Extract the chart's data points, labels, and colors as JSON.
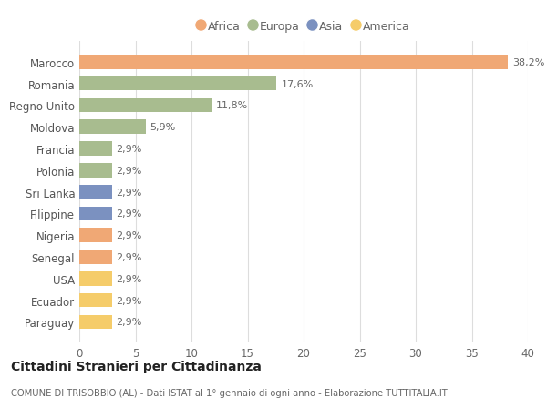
{
  "categories": [
    "Marocco",
    "Romania",
    "Regno Unito",
    "Moldova",
    "Francia",
    "Polonia",
    "Sri Lanka",
    "Filippine",
    "Nigeria",
    "Senegal",
    "USA",
    "Ecuador",
    "Paraguay"
  ],
  "values": [
    38.2,
    17.6,
    11.8,
    5.9,
    2.9,
    2.9,
    2.9,
    2.9,
    2.9,
    2.9,
    2.9,
    2.9,
    2.9
  ],
  "labels": [
    "38,2%",
    "17,6%",
    "11,8%",
    "5,9%",
    "2,9%",
    "2,9%",
    "2,9%",
    "2,9%",
    "2,9%",
    "2,9%",
    "2,9%",
    "2,9%",
    "2,9%"
  ],
  "colors": [
    "#F0A875",
    "#A8BC8F",
    "#A8BC8F",
    "#A8BC8F",
    "#A8BC8F",
    "#A8BC8F",
    "#7B91C0",
    "#7B91C0",
    "#F0A875",
    "#F0A875",
    "#F5CC6A",
    "#F5CC6A",
    "#F5CC6A"
  ],
  "legend": [
    {
      "label": "Africa",
      "color": "#F0A875"
    },
    {
      "label": "Europa",
      "color": "#A8BC8F"
    },
    {
      "label": "Asia",
      "color": "#7B91C0"
    },
    {
      "label": "America",
      "color": "#F5CC6A"
    }
  ],
  "title": "Cittadini Stranieri per Cittadinanza",
  "subtitle": "COMUNE DI TRISOBBIO (AL) - Dati ISTAT al 1° gennaio di ogni anno - Elaborazione TUTTITALIA.IT",
  "xlim": [
    0,
    40
  ],
  "xticks": [
    0,
    5,
    10,
    15,
    20,
    25,
    30,
    35,
    40
  ],
  "bg_color": "#ffffff",
  "grid_color": "#dddddd"
}
